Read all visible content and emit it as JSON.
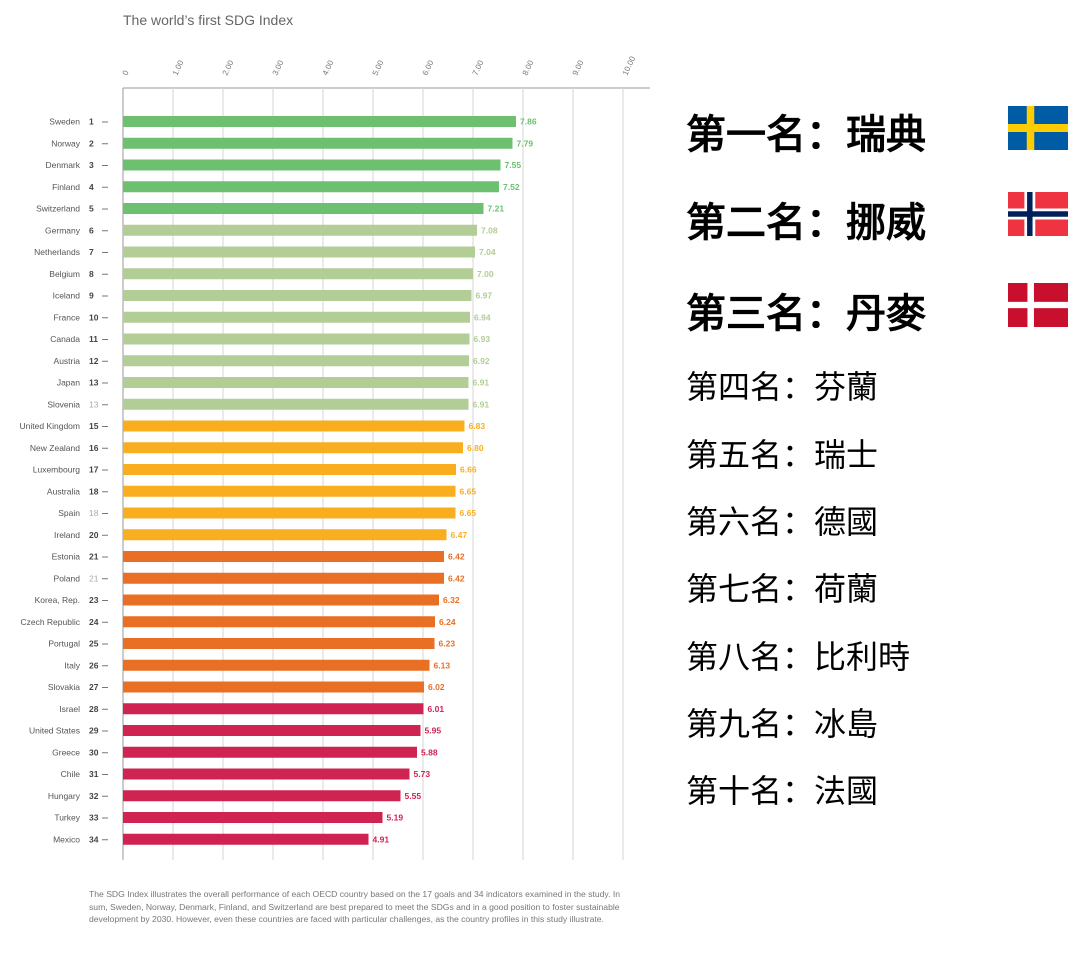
{
  "chart_data": {
    "type": "bar",
    "orientation": "horizontal",
    "title": "The world’s first SDG Index",
    "xlim": [
      0,
      10
    ],
    "x_ticks": [
      "0",
      "1.00",
      "2.00",
      "3.00",
      "4.00",
      "5.00",
      "6.00",
      "7.00",
      "8.00",
      "9.00",
      "10.00"
    ],
    "grid": true,
    "bars": [
      {
        "country": "Sweden",
        "rank": "1",
        "value": 7.86,
        "color": "#6cc070"
      },
      {
        "country": "Norway",
        "rank": "2",
        "value": 7.79,
        "color": "#6cc070"
      },
      {
        "country": "Denmark",
        "rank": "3",
        "value": 7.55,
        "color": "#6cc070"
      },
      {
        "country": "Finland",
        "rank": "4",
        "value": 7.52,
        "color": "#6cc070"
      },
      {
        "country": "Switzerland",
        "rank": "5",
        "value": 7.21,
        "color": "#6cc070"
      },
      {
        "country": "Germany",
        "rank": "6",
        "value": 7.08,
        "color": "#b2cd96"
      },
      {
        "country": "Netherlands",
        "rank": "7",
        "value": 7.04,
        "color": "#b2cd96"
      },
      {
        "country": "Belgium",
        "rank": "8",
        "value": 7.0,
        "color": "#b2cd96"
      },
      {
        "country": "Iceland",
        "rank": "9",
        "value": 6.97,
        "color": "#b2cd96"
      },
      {
        "country": "France",
        "rank": "10",
        "value": 6.94,
        "color": "#b2cd96"
      },
      {
        "country": "Canada",
        "rank": "11",
        "value": 6.93,
        "color": "#b2cd96"
      },
      {
        "country": "Austria",
        "rank": "12",
        "value": 6.92,
        "color": "#b2cd96"
      },
      {
        "country": "Japan",
        "rank": "13",
        "value": 6.91,
        "color": "#b2cd96"
      },
      {
        "country": "Slovenia",
        "rank": "13",
        "value": 6.91,
        "color": "#b2cd96",
        "tied": true
      },
      {
        "country": "United Kingdom",
        "rank": "15",
        "value": 6.83,
        "color": "#f9ae1f"
      },
      {
        "country": "New Zealand",
        "rank": "16",
        "value": 6.8,
        "color": "#f9ae1f"
      },
      {
        "country": "Luxembourg",
        "rank": "17",
        "value": 6.66,
        "color": "#f9ae1f"
      },
      {
        "country": "Australia",
        "rank": "18",
        "value": 6.65,
        "color": "#f9ae1f"
      },
      {
        "country": "Spain",
        "rank": "18",
        "value": 6.65,
        "color": "#f9ae1f",
        "tied": true
      },
      {
        "country": "Ireland",
        "rank": "20",
        "value": 6.47,
        "color": "#f9ae1f"
      },
      {
        "country": "Estonia",
        "rank": "21",
        "value": 6.42,
        "color": "#e86f24"
      },
      {
        "country": "Poland",
        "rank": "21",
        "value": 6.42,
        "color": "#e86f24",
        "tied": true
      },
      {
        "country": "Korea, Rep.",
        "rank": "23",
        "value": 6.32,
        "color": "#e86f24"
      },
      {
        "country": "Czech Republic",
        "rank": "24",
        "value": 6.24,
        "color": "#e86f24"
      },
      {
        "country": "Portugal",
        "rank": "25",
        "value": 6.23,
        "color": "#e86f24"
      },
      {
        "country": "Italy",
        "rank": "26",
        "value": 6.13,
        "color": "#e86f24"
      },
      {
        "country": "Slovakia",
        "rank": "27",
        "value": 6.02,
        "color": "#e86f24"
      },
      {
        "country": "Israel",
        "rank": "28",
        "value": 6.01,
        "color": "#cf2352"
      },
      {
        "country": "United States",
        "rank": "29",
        "value": 5.95,
        "color": "#cf2352"
      },
      {
        "country": "Greece",
        "rank": "30",
        "value": 5.88,
        "color": "#cf2352"
      },
      {
        "country": "Chile",
        "rank": "31",
        "value": 5.73,
        "color": "#cf2352"
      },
      {
        "country": "Hungary",
        "rank": "32",
        "value": 5.55,
        "color": "#cf2352"
      },
      {
        "country": "Turkey",
        "rank": "33",
        "value": 5.19,
        "color": "#cf2352"
      },
      {
        "country": "Mexico",
        "rank": "34",
        "value": 4.91,
        "color": "#cf2352"
      }
    ],
    "caption": "The SDG Index illustrates the overall performance of each OECD country based on the 17 goals and 34 indicators examined in the study. In sum, Sweden, Norway, Denmark, Finland, and Switzerland are best prepared to meet the SDGs and in a good position to foster sustainable development by 2030. However, even these countries are faced with particular challenges, as the country profiles in this study illustrate."
  },
  "rankings": [
    {
      "text": "第一名：瑞典",
      "flag": "sweden-flag"
    },
    {
      "text": "第二名：挪威",
      "flag": "norway-flag"
    },
    {
      "text": "第三名：丹麥",
      "flag": "denmark-flag"
    },
    {
      "text": "第四名：芬蘭"
    },
    {
      "text": "第五名：瑞士"
    },
    {
      "text": "第六名：德國"
    },
    {
      "text": "第七名：荷蘭"
    },
    {
      "text": "第八名：比利時"
    },
    {
      "text": "第九名：冰島"
    },
    {
      "text": "第十名：法國"
    }
  ],
  "colors": {
    "sweden_blue": "#005ba5",
    "sweden_yellow": "#fecc00",
    "norway_red": "#ef3340",
    "norway_blue": "#00205b",
    "denmark_red": "#c8102e"
  }
}
